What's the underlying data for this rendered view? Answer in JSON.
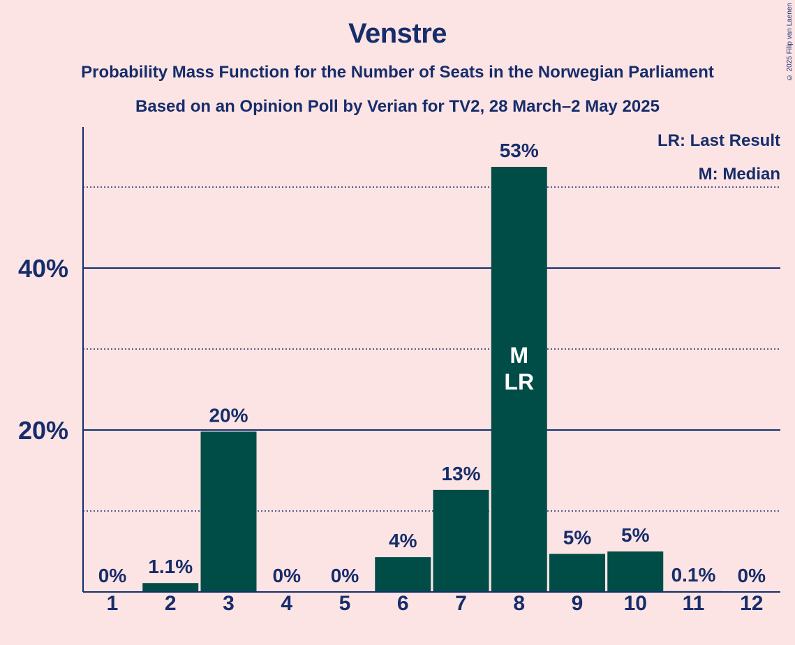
{
  "title": "Venstre",
  "subtitle1": "Probability Mass Function for the Number of Seats in the Norwegian Parliament",
  "subtitle2": "Based on an Opinion Poll by Verian for TV2, 28 March–2 May 2025",
  "copyright": "© 2025 Filip van Laenen",
  "legend": {
    "lr": "LR: Last Result",
    "m": "M: Median"
  },
  "colors": {
    "background": "#fde4e4",
    "bar": "#004d47",
    "text": "#162d6b",
    "bar_label_inside": "#ffffff"
  },
  "chart_data": {
    "type": "bar",
    "categories": [
      "1",
      "2",
      "3",
      "4",
      "5",
      "6",
      "7",
      "8",
      "9",
      "10",
      "11",
      "12"
    ],
    "values": [
      0,
      1.1,
      19.8,
      0,
      0,
      4.3,
      12.6,
      52.5,
      4.7,
      5.0,
      0.1,
      0
    ],
    "labels": [
      "0%",
      "1.1%",
      "20%",
      "0%",
      "0%",
      "4%",
      "13%",
      "53%",
      "5%",
      "5%",
      "0.1%",
      "0%"
    ],
    "ylim": [
      0,
      57
    ],
    "y_ticks": [
      {
        "value": 20,
        "label": "20%",
        "style": "solid"
      },
      {
        "value": 40,
        "label": "40%",
        "style": "solid"
      }
    ],
    "y_minor_gridlines": [
      10,
      30,
      50
    ],
    "inside_bar_labels": [
      {
        "category": "8",
        "lines": [
          "M",
          "LR"
        ]
      }
    ],
    "legend_position": "top-right"
  }
}
